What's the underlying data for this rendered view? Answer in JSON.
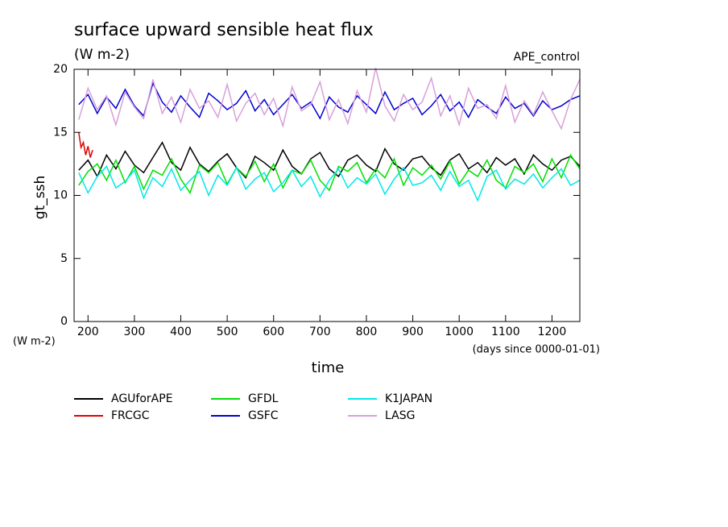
{
  "chart_data": {
    "type": "line",
    "title": "surface upward sensible heat flux",
    "subtitle": "(W m-2)",
    "annotation": "APE_control",
    "y_label": "gt_ssh",
    "y_unit_label": "(W m-2)",
    "x_label": "time",
    "x_unit_label": "(days since 0000-01-01)",
    "x": [
      180,
      200,
      220,
      240,
      260,
      280,
      300,
      320,
      340,
      360,
      380,
      400,
      420,
      440,
      460,
      480,
      500,
      520,
      540,
      560,
      580,
      600,
      620,
      640,
      660,
      680,
      700,
      720,
      740,
      760,
      780,
      800,
      820,
      840,
      860,
      880,
      900,
      920,
      940,
      960,
      980,
      1000,
      1020,
      1040,
      1060,
      1080,
      1100,
      1120,
      1140,
      1160,
      1180,
      1200,
      1220,
      1240,
      1260
    ],
    "xlim": [
      170,
      1260
    ],
    "xticks": [
      200,
      300,
      400,
      500,
      600,
      700,
      800,
      900,
      1000,
      1100,
      1200
    ],
    "ylim": [
      0,
      20
    ],
    "yticks": [
      0,
      5,
      10,
      15,
      20
    ],
    "series": [
      {
        "name": "AGUforAPE",
        "color": "#000000",
        "values": [
          12.0,
          12.8,
          11.5,
          13.2,
          12.1,
          13.5,
          12.4,
          11.8,
          13.0,
          14.2,
          12.6,
          12.0,
          13.8,
          12.5,
          11.9,
          12.7,
          13.3,
          12.2,
          11.4,
          13.1,
          12.6,
          12.0,
          13.6,
          12.3,
          11.7,
          12.9,
          13.4,
          12.1,
          11.5,
          12.8,
          13.2,
          12.4,
          11.9,
          13.7,
          12.5,
          12.0,
          12.9,
          13.1,
          12.2,
          11.6,
          12.8,
          13.3,
          12.1,
          12.6,
          11.8,
          13.0,
          12.4,
          12.9,
          11.7,
          13.2,
          12.5,
          12.0,
          12.8,
          13.1,
          12.3
        ]
      },
      {
        "name": "FRCGC",
        "color": "#e00000",
        "x": [
          180,
          185,
          190,
          195,
          200,
          205,
          210
        ],
        "values": [
          15.0,
          13.8,
          14.2,
          13.2,
          13.9,
          13.0,
          13.6
        ]
      },
      {
        "name": "GFDL",
        "color": "#00e000",
        "values": [
          10.8,
          11.9,
          12.5,
          11.2,
          12.8,
          11.0,
          12.3,
          10.5,
          12.0,
          11.6,
          12.9,
          11.3,
          10.2,
          12.4,
          11.8,
          12.6,
          10.9,
          12.2,
          11.5,
          12.7,
          11.1,
          12.5,
          10.6,
          12.0,
          11.7,
          12.8,
          11.2,
          10.4,
          12.3,
          11.9,
          12.6,
          11.0,
          12.1,
          11.4,
          12.9,
          10.8,
          12.2,
          11.6,
          12.4,
          11.3,
          12.7,
          10.9,
          12.0,
          11.5,
          12.8,
          11.2,
          10.6,
          12.3,
          11.8,
          12.5,
          11.1,
          12.9,
          11.4,
          13.2,
          12.1
        ]
      },
      {
        "name": "GSFC",
        "color": "#0000d0",
        "values": [
          17.2,
          18.0,
          16.5,
          17.8,
          16.9,
          18.4,
          17.1,
          16.3,
          18.9,
          17.4,
          16.6,
          17.9,
          17.0,
          16.2,
          18.1,
          17.5,
          16.8,
          17.3,
          18.3,
          16.7,
          17.6,
          16.4,
          17.2,
          18.0,
          16.9,
          17.4,
          16.1,
          17.8,
          17.0,
          16.6,
          17.9,
          17.2,
          16.5,
          18.2,
          16.8,
          17.3,
          17.7,
          16.4,
          17.1,
          18.0,
          16.7,
          17.4,
          16.2,
          17.6,
          17.0,
          16.5,
          17.8,
          16.9,
          17.3,
          16.3,
          17.5,
          16.8,
          17.1,
          17.6,
          17.9
        ]
      },
      {
        "name": "K1JAPAN",
        "color": "#00e8e8",
        "values": [
          11.8,
          10.2,
          11.5,
          12.3,
          10.6,
          11.1,
          12.0,
          9.8,
          11.4,
          10.7,
          12.1,
          10.4,
          11.2,
          11.9,
          10.0,
          11.6,
          10.8,
          12.2,
          10.5,
          11.3,
          11.8,
          10.3,
          11.0,
          12.0,
          10.7,
          11.5,
          9.9,
          11.2,
          12.1,
          10.6,
          11.4,
          10.9,
          11.7,
          10.1,
          11.3,
          12.2,
          10.8,
          11.0,
          11.6,
          10.4,
          11.9,
          10.7,
          11.2,
          9.6,
          11.5,
          12.0,
          10.5,
          11.3,
          10.9,
          11.7,
          10.6,
          11.4,
          12.1,
          10.8,
          11.2
        ]
      },
      {
        "name": "LASG",
        "color": "#d8a0d8",
        "values": [
          16.0,
          18.5,
          16.8,
          17.9,
          15.6,
          18.2,
          17.0,
          16.1,
          19.2,
          16.5,
          17.8,
          15.8,
          18.4,
          16.9,
          17.5,
          16.2,
          18.8,
          15.9,
          17.3,
          18.1,
          16.4,
          17.7,
          15.5,
          18.6,
          16.7,
          17.2,
          19.0,
          16.0,
          17.6,
          15.7,
          18.3,
          16.6,
          20.1,
          17.1,
          15.9,
          18.0,
          16.8,
          17.4,
          19.3,
          16.3,
          17.9,
          15.6,
          18.5,
          16.9,
          17.2,
          16.1,
          18.7,
          15.8,
          17.5,
          16.4,
          18.2,
          16.7,
          15.3,
          17.6,
          19.2
        ]
      }
    ]
  }
}
